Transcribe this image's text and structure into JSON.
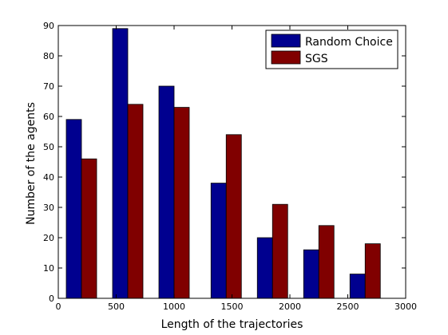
{
  "chart_data": {
    "type": "bar",
    "xlabel": "Length of the trajectories",
    "ylabel": "Number of the agents",
    "xlim": [
      0,
      3000
    ],
    "ylim": [
      0,
      90
    ],
    "xticks": [
      0,
      500,
      1000,
      1500,
      2000,
      2500,
      3000
    ],
    "yticks": [
      0,
      10,
      20,
      30,
      40,
      50,
      60,
      70,
      80,
      90
    ],
    "categories": [
      200,
      600,
      1000,
      1450,
      1850,
      2250,
      2650
    ],
    "series": [
      {
        "name": "Random Choice",
        "color": "#00008f",
        "values": [
          59,
          89,
          70,
          38,
          20,
          16,
          8
        ]
      },
      {
        "name": "SGS",
        "color": "#800000",
        "values": [
          46,
          64,
          63,
          54,
          31,
          24,
          18
        ]
      }
    ],
    "legend_position": "top-right",
    "grid": false
  }
}
